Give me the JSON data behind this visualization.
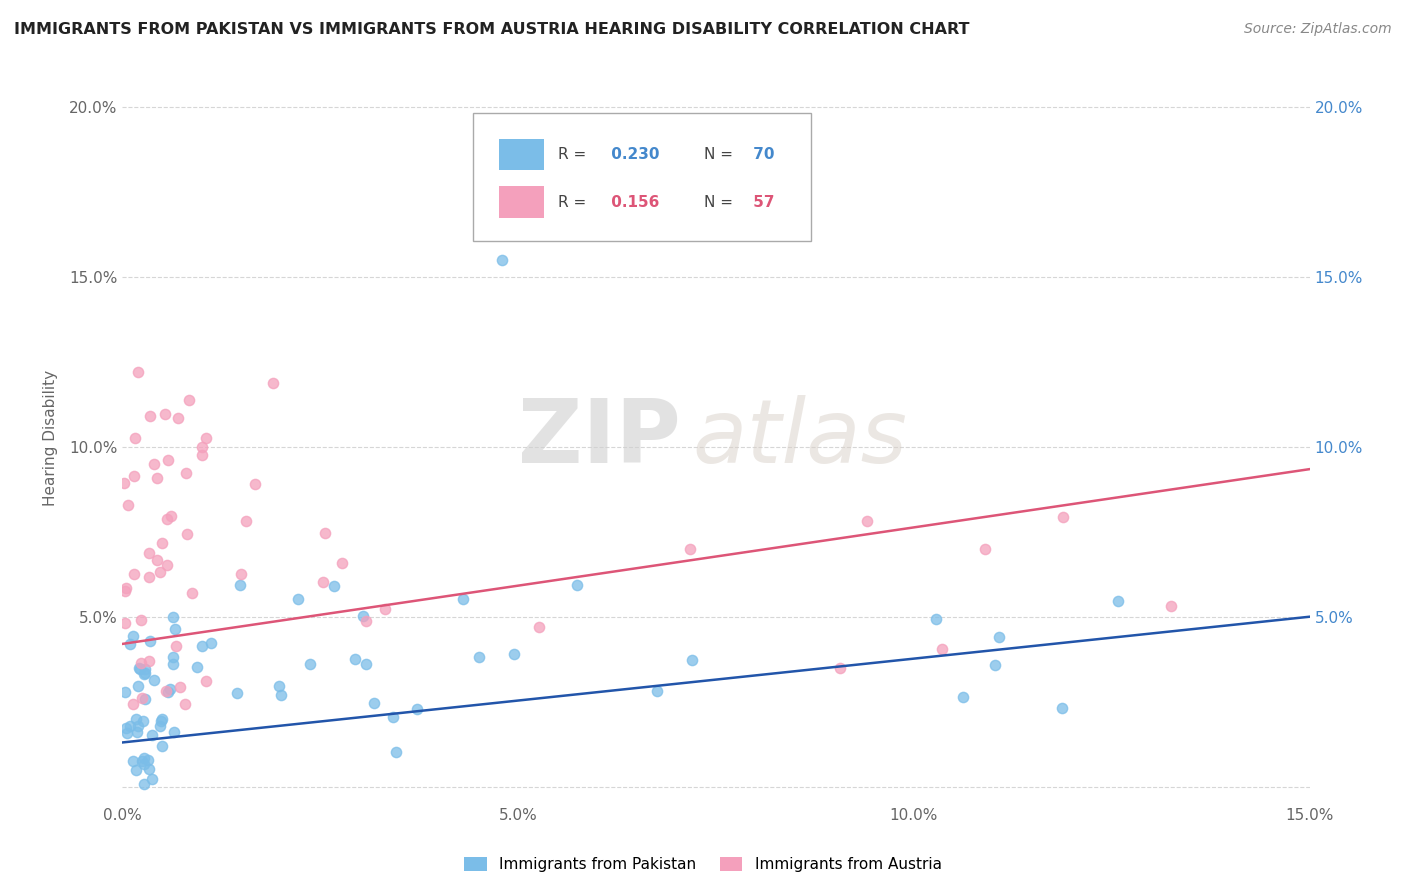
{
  "title": "IMMIGRANTS FROM PAKISTAN VS IMMIGRANTS FROM AUSTRIA HEARING DISABILITY CORRELATION CHART",
  "source": "Source: ZipAtlas.com",
  "ylabel": "Hearing Disability",
  "x_min": 0.0,
  "x_max": 0.15,
  "y_min": -0.005,
  "y_max": 0.21,
  "R_pakistan": 0.23,
  "N_pakistan": 70,
  "R_austria": 0.156,
  "N_austria": 57,
  "color_pakistan": "#7bbde8",
  "color_austria": "#f4a0bc",
  "line_color_pakistan": "#2255aa",
  "line_color_austria": "#dd5577",
  "legend_label_pakistan": "Immigrants from Pakistan",
  "legend_label_austria": "Immigrants from Austria",
  "watermark_zip": "ZIP",
  "watermark_atlas": "atlas",
  "background_color": "#ffffff",
  "grid_color": "#cccccc",
  "title_color": "#222222",
  "source_color": "#888888",
  "ylabel_color": "#666666",
  "tick_color_left": "#666666",
  "tick_color_right": "#4488cc"
}
